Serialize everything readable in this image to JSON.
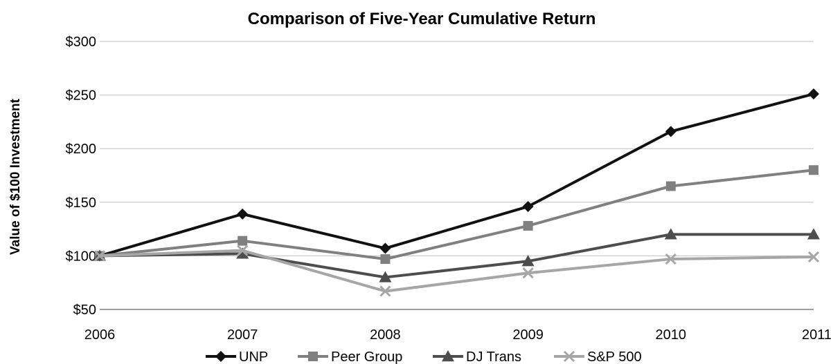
{
  "chart_data": {
    "type": "line",
    "title": "Comparison of Five-Year Cumulative Return",
    "xlabel": "",
    "ylabel": "Value of $100 Investment",
    "categories": [
      "2006",
      "2007",
      "2008",
      "2009",
      "2010",
      "2011"
    ],
    "y_tick_labels": [
      "$50",
      "$100",
      "$150",
      "$200",
      "$250",
      "$300"
    ],
    "y_ticks": [
      50,
      100,
      150,
      200,
      250,
      300
    ],
    "ylim": [
      50,
      300
    ],
    "grid": "horizontal",
    "legend_position": "bottom",
    "series": [
      {
        "name": "UNP",
        "marker": "diamond",
        "color": "#111111",
        "values": [
          100,
          139,
          107,
          146,
          216,
          251
        ]
      },
      {
        "name": "Peer Group",
        "marker": "square",
        "color": "#808080",
        "values": [
          100,
          114,
          97,
          128,
          165,
          180
        ]
      },
      {
        "name": "DJ Trans",
        "marker": "triangle",
        "color": "#4d4d4d",
        "values": [
          100,
          102,
          80,
          95,
          120,
          120
        ]
      },
      {
        "name": "S&P 500",
        "marker": "x",
        "color": "#a6a6a6",
        "values": [
          100,
          105,
          67,
          84,
          97,
          99
        ]
      }
    ]
  }
}
